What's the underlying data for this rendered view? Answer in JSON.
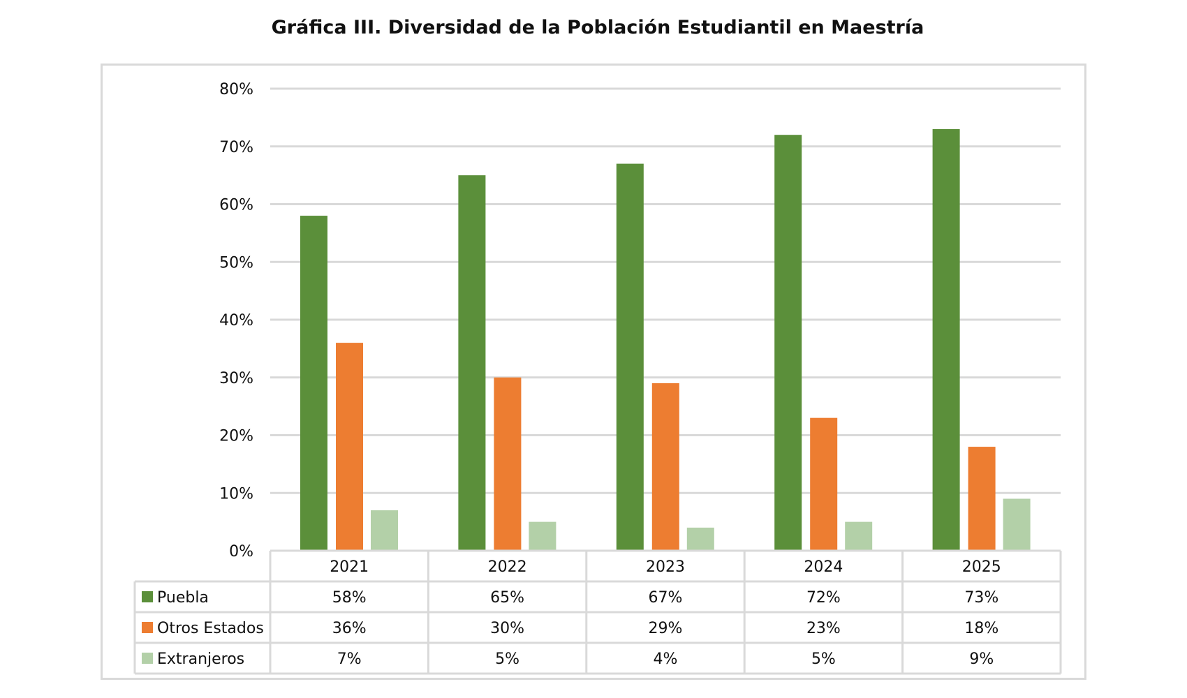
{
  "chart_data": {
    "type": "bar",
    "title": "Gráfica III. Diversidad de la Población Estudiantil en Maestría",
    "categories": [
      "2021",
      "2022",
      "2023",
      "2024",
      "2025"
    ],
    "series": [
      {
        "name": "Puebla",
        "color": "#5b8f3a",
        "values": [
          58,
          65,
          67,
          72,
          73
        ]
      },
      {
        "name": "Otros Estados",
        "color": "#ed7d31",
        "values": [
          36,
          30,
          29,
          23,
          18
        ]
      },
      {
        "name": "Extranjeros",
        "color": "#b3d0a8",
        "values": [
          7,
          5,
          4,
          5,
          9
        ]
      }
    ],
    "ylim": [
      0,
      80
    ],
    "yticks": [
      "0%",
      "10%",
      "20%",
      "30%",
      "40%",
      "50%",
      "60%",
      "70%",
      "80%"
    ],
    "grid": true,
    "legend": "data-table"
  }
}
